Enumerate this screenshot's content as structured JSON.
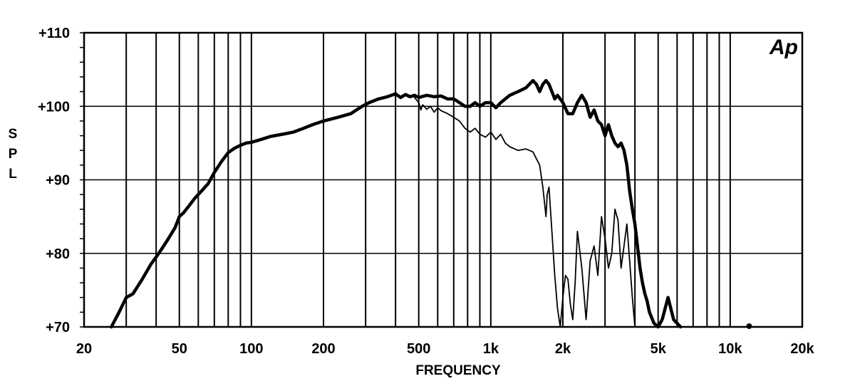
{
  "chart_data": {
    "type": "line",
    "xlabel": "FREQUENCY",
    "ylabel": "SPL",
    "x_scale": "log",
    "xlim": [
      20,
      20000
    ],
    "ylim": [
      70,
      110
    ],
    "grid": true,
    "legend": "none",
    "logo": "Ap",
    "x_ticks": [
      {
        "value": 20,
        "label": "20"
      },
      {
        "value": 50,
        "label": "50"
      },
      {
        "value": 100,
        "label": "100"
      },
      {
        "value": 200,
        "label": "200"
      },
      {
        "value": 500,
        "label": "500"
      },
      {
        "value": 1000,
        "label": "1k"
      },
      {
        "value": 2000,
        "label": "2k"
      },
      {
        "value": 5000,
        "label": "5k"
      },
      {
        "value": 10000,
        "label": "10k"
      },
      {
        "value": 20000,
        "label": "20k"
      }
    ],
    "y_ticks": [
      {
        "value": 70,
        "label": "+70"
      },
      {
        "value": 80,
        "label": "+80"
      },
      {
        "value": 90,
        "label": "+90"
      },
      {
        "value": 100,
        "label": "+100"
      },
      {
        "value": 110,
        "label": "+110"
      }
    ],
    "series": [
      {
        "style": "thick",
        "x": [
          26,
          28,
          30,
          32,
          35,
          38,
          40,
          42,
          45,
          48,
          50,
          52,
          55,
          58,
          62,
          66,
          70,
          75,
          80,
          85,
          90,
          95,
          100,
          110,
          120,
          135,
          150,
          165,
          180,
          200,
          230,
          260,
          290,
          310,
          340,
          370,
          400,
          420,
          440,
          460,
          480,
          500,
          540,
          580,
          620,
          660,
          700,
          740,
          780,
          820,
          860,
          900,
          950,
          1000,
          1050,
          1100,
          1150,
          1200,
          1300,
          1400,
          1500,
          1550,
          1600,
          1650,
          1700,
          1750,
          1800,
          1850,
          1900,
          2000,
          2100,
          2200,
          2300,
          2400,
          2500,
          2600,
          2700,
          2800,
          2900,
          3000,
          3100,
          3200,
          3300,
          3400,
          3500,
          3600,
          3700,
          3800,
          3900,
          4000,
          4100,
          4200,
          4300,
          4400,
          4500,
          4600,
          4800,
          5000,
          5200,
          5500,
          5800,
          6000,
          6200
        ],
        "y": [
          70,
          72,
          74,
          74.5,
          76.5,
          78.5,
          79.5,
          80.5,
          82,
          83.5,
          85,
          85.5,
          86.5,
          87.5,
          88.5,
          89.5,
          91,
          92.5,
          93.7,
          94.3,
          94.7,
          95,
          95.1,
          95.5,
          95.9,
          96.2,
          96.5,
          97,
          97.5,
          98,
          98.5,
          99,
          100,
          100.5,
          101,
          101.3,
          101.7,
          101.2,
          101.6,
          101.3,
          101.5,
          101.2,
          101.5,
          101.3,
          101.4,
          101.0,
          101.0,
          100.5,
          100.0,
          100.0,
          100.5,
          100.0,
          100.5,
          100.5,
          99.8,
          100.5,
          101.0,
          101.5,
          102.0,
          102.5,
          103.5,
          103.0,
          102.0,
          103.0,
          103.5,
          103.0,
          102.0,
          101.0,
          101.5,
          100.5,
          99.0,
          99.0,
          100.5,
          101.5,
          100.5,
          98.5,
          99.5,
          98.0,
          97.5,
          96.0,
          97.5,
          96.0,
          95.0,
          94.5,
          95.0,
          94.0,
          92.0,
          88.5,
          86.0,
          84.0,
          81.0,
          78.0,
          76.0,
          74.5,
          73.5,
          72.0,
          70.5,
          70.0,
          71.0,
          74.0,
          71.0,
          70.5,
          70.0
        ]
      },
      {
        "style": "thin",
        "x": [
          480,
          500,
          510,
          520,
          540,
          560,
          580,
          600,
          620,
          660,
          700,
          740,
          780,
          820,
          860,
          900,
          950,
          1000,
          1050,
          1100,
          1150,
          1200,
          1300,
          1400,
          1500,
          1600,
          1650,
          1700,
          1720,
          1750,
          1800,
          1850,
          1900,
          1950,
          2000,
          2050,
          2100,
          2150,
          2200,
          2250,
          2300,
          2400,
          2500,
          2600,
          2700,
          2800,
          2900,
          3000,
          3100,
          3200,
          3300,
          3400,
          3500,
          3600,
          3700,
          3800,
          3900,
          4000
        ],
        "y": [
          101.2,
          100.5,
          99.5,
          100.2,
          99.6,
          100.0,
          99.2,
          99.8,
          99.4,
          99.0,
          98.5,
          98.0,
          97.0,
          96.5,
          97.0,
          96.2,
          95.8,
          96.5,
          95.5,
          96.2,
          95.0,
          94.5,
          94.0,
          94.2,
          93.8,
          92.0,
          89.0,
          85.0,
          88.0,
          89.0,
          83.0,
          77.0,
          72.5,
          70.0,
          74.0,
          77.0,
          76.5,
          73.0,
          71.0,
          76.0,
          83.0,
          78.0,
          71.0,
          79.0,
          81.0,
          77.0,
          85.0,
          82.0,
          78.0,
          80.0,
          86.0,
          84.5,
          78.0,
          81.0,
          84.0,
          79.0,
          74.0,
          70.0
        ]
      }
    ]
  }
}
